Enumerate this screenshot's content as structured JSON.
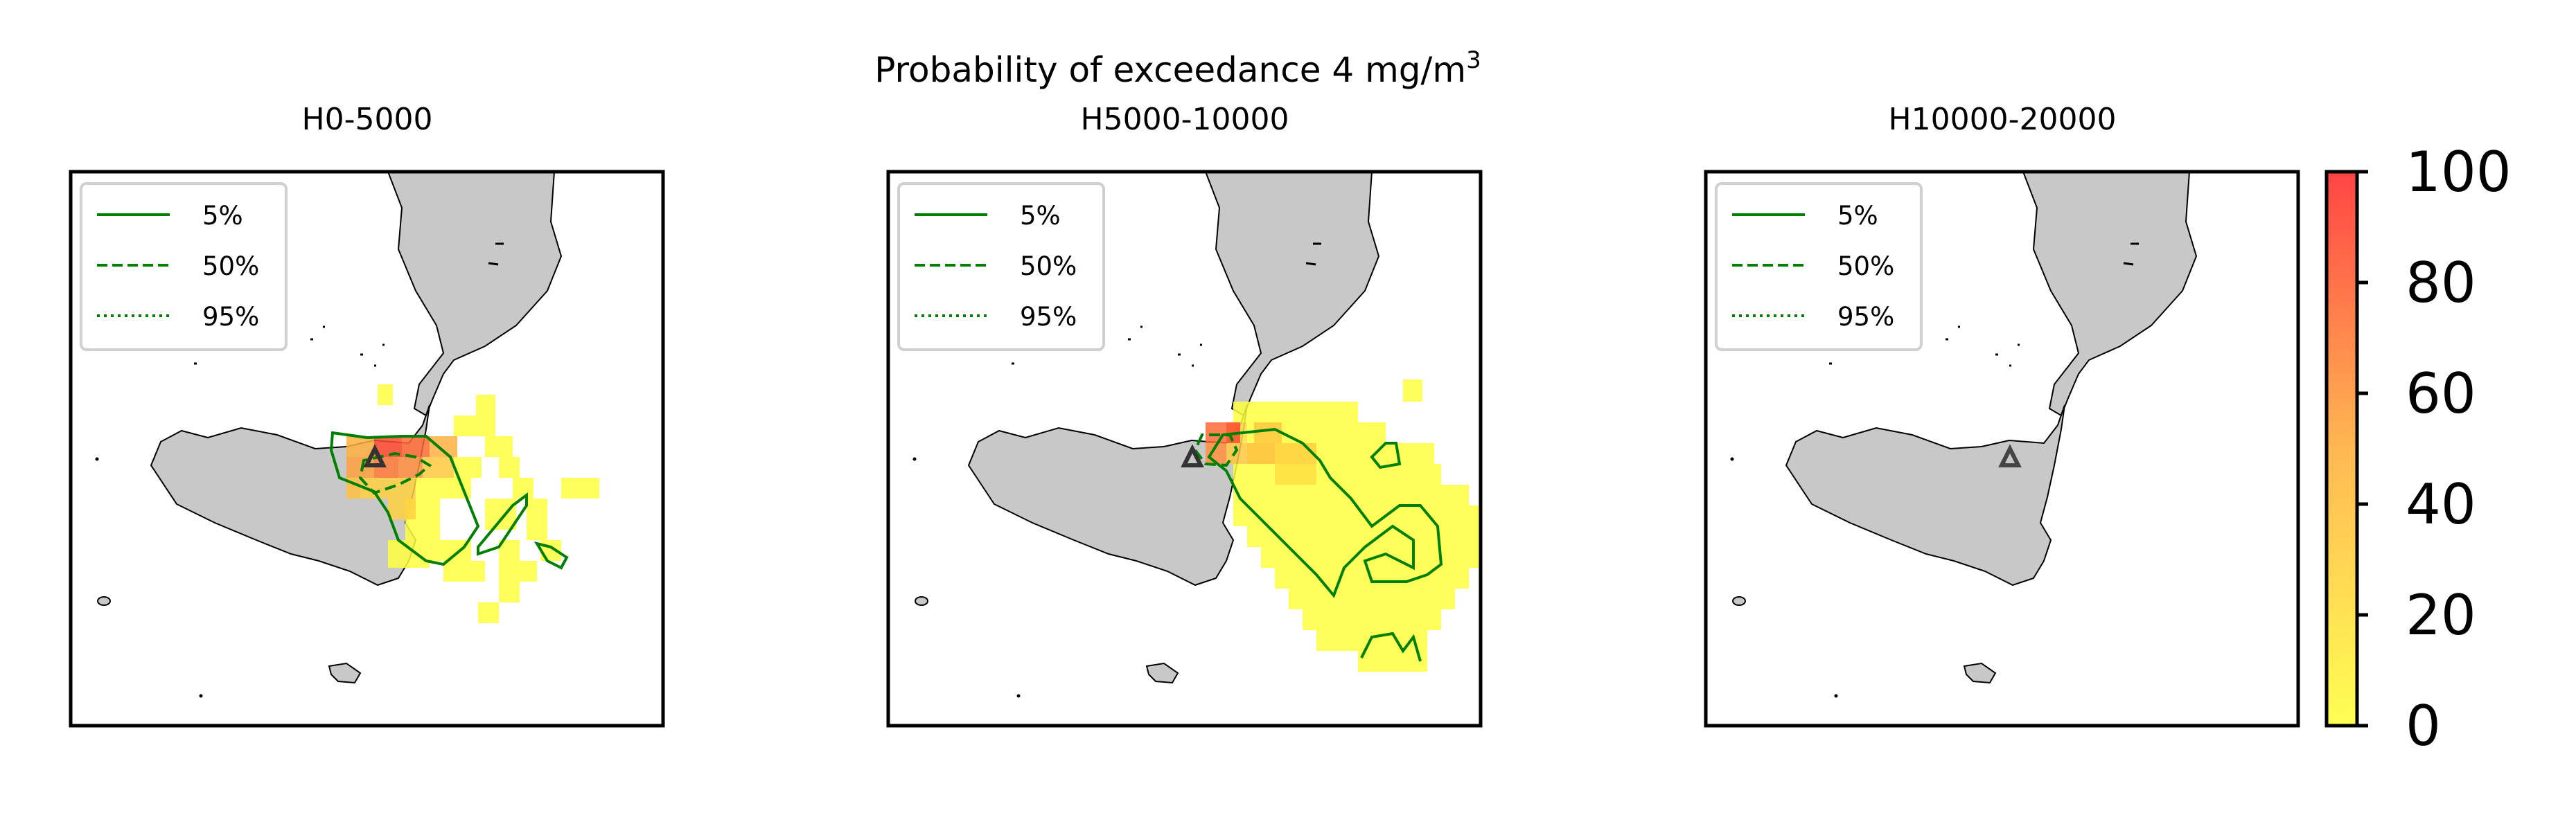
{
  "figure": {
    "suptitle": "Probability of exceedance 4 mg/m",
    "suptitle_superscript": "3"
  },
  "legend": {
    "entries": [
      {
        "label": "5%",
        "style": "solid"
      },
      {
        "label": "50%",
        "style": "dashed"
      },
      {
        "label": "95%",
        "style": "dotted"
      }
    ],
    "contour_color": "#008000"
  },
  "panels": [
    {
      "title": "H0-5000"
    },
    {
      "title": "H5000-10000"
    },
    {
      "title": "H10000-20000"
    }
  ],
  "colors": {
    "land": "#c8c8c8",
    "coast": "#000000",
    "vent_marker": "#333333",
    "cmap_low": "#ffff40",
    "cmap_high": "#ff3030"
  },
  "colorbar": {
    "min": 0,
    "max": 100,
    "ticks": [
      "0",
      "20",
      "40",
      "60",
      "80",
      "100"
    ]
  }
}
